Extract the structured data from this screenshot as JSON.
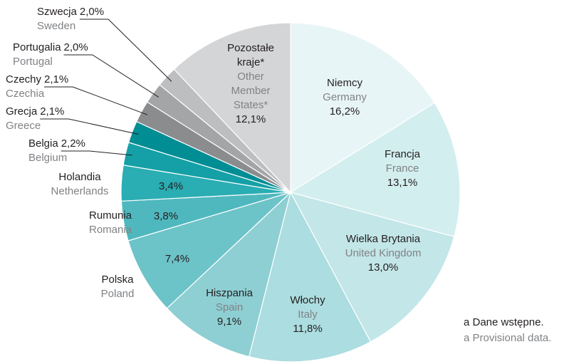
{
  "chart_data": {
    "type": "pie",
    "categories": [
      "Niemcy",
      "Francja",
      "Wielka Brytania",
      "Włochy",
      "Hiszpania",
      "Polska",
      "Rumunia",
      "Holandia",
      "Belgia",
      "Grecja",
      "Czechy",
      "Portugalia",
      "Szwecja",
      "Pozostałe kraje*"
    ],
    "categories_en": [
      "Germany",
      "France",
      "United Kingdom",
      "Italy",
      "Spain",
      "Poland",
      "Romania",
      "Netherlands",
      "Belgium",
      "Greece",
      "Czechia",
      "Portugal",
      "Sweden",
      "Other Member States*"
    ],
    "values": [
      16.2,
      13.1,
      13.0,
      11.8,
      9.1,
      7.4,
      3.8,
      3.4,
      2.2,
      2.1,
      2.1,
      2.0,
      2.0,
      12.1
    ],
    "value_labels": [
      "16,2%",
      "13,1%",
      "13,0%",
      "11,8%",
      "9,1%",
      "7,4%",
      "3,8%",
      "3,4%",
      "2,2%",
      "2,1%",
      "2,1%",
      "2,0%",
      "2,0%",
      "12,1%"
    ],
    "colors": [
      "#e8f5f6",
      "#d3eeef",
      "#c3e6e8",
      "#acdde0",
      "#8ecfd3",
      "#6cc3c8",
      "#4fb8be",
      "#2aadb3",
      "#14a0a6",
      "#008d94",
      "#8a8c8e",
      "#a3a5a7",
      "#bcbec0",
      "#d4d5d6"
    ],
    "notes": [
      "a Dane wstępne.",
      "a Provisional data."
    ]
  }
}
